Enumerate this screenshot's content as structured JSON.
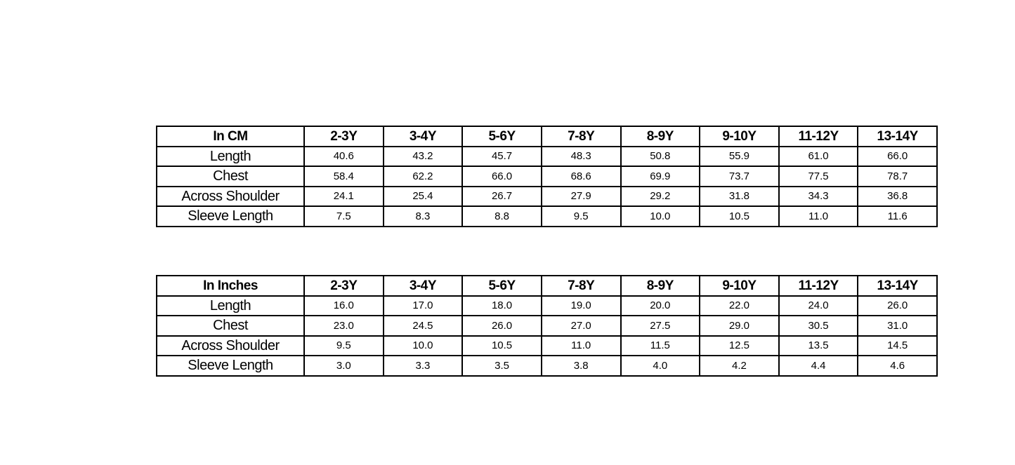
{
  "tables": [
    {
      "header": "In CM",
      "sizes": [
        "2-3Y",
        "3-4Y",
        "5-6Y",
        "7-8Y",
        "8-9Y",
        "9-10Y",
        "11-12Y",
        "13-14Y"
      ],
      "rows": [
        {
          "label": "Length",
          "values": [
            "40.6",
            "43.2",
            "45.7",
            "48.3",
            "50.8",
            "55.9",
            "61.0",
            "66.0"
          ]
        },
        {
          "label": "Chest",
          "values": [
            "58.4",
            "62.2",
            "66.0",
            "68.6",
            "69.9",
            "73.7",
            "77.5",
            "78.7"
          ]
        },
        {
          "label": "Across Shoulder",
          "values": [
            "24.1",
            "25.4",
            "26.7",
            "27.9",
            "29.2",
            "31.8",
            "34.3",
            "36.8"
          ]
        },
        {
          "label": "Sleeve Length",
          "values": [
            "7.5",
            "8.3",
            "8.8",
            "9.5",
            "10.0",
            "10.5",
            "11.0",
            "11.6"
          ]
        }
      ]
    },
    {
      "header": "In Inches",
      "sizes": [
        "2-3Y",
        "3-4Y",
        "5-6Y",
        "7-8Y",
        "8-9Y",
        "9-10Y",
        "11-12Y",
        "13-14Y"
      ],
      "rows": [
        {
          "label": "Length",
          "values": [
            "16.0",
            "17.0",
            "18.0",
            "19.0",
            "20.0",
            "22.0",
            "24.0",
            "26.0"
          ]
        },
        {
          "label": "Chest",
          "values": [
            "23.0",
            "24.5",
            "26.0",
            "27.0",
            "27.5",
            "29.0",
            "30.5",
            "31.0"
          ]
        },
        {
          "label": "Across Shoulder",
          "values": [
            "9.5",
            "10.0",
            "10.5",
            "11.0",
            "11.5",
            "12.5",
            "13.5",
            "14.5"
          ]
        },
        {
          "label": "Sleeve Length",
          "values": [
            "3.0",
            "3.3",
            "3.5",
            "3.8",
            "4.0",
            "4.2",
            "4.4",
            "4.6"
          ]
        }
      ]
    }
  ]
}
